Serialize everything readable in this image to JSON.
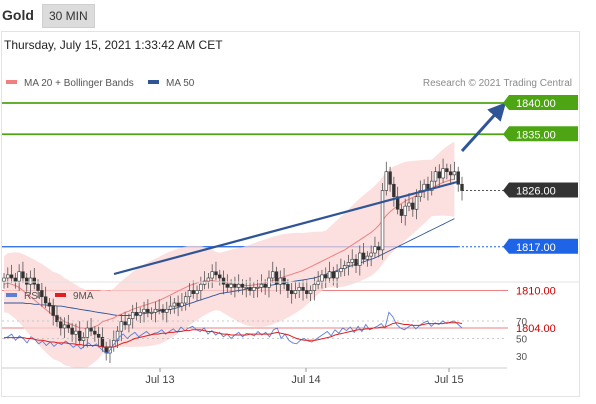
{
  "header": {
    "symbol": "Gold",
    "timeframe": "30 MIN"
  },
  "timestamp": "Thursday, July 15, 2021 1:33:42 AM CET",
  "legend": {
    "ma20": {
      "label": "MA 20 + Bollinger Bands",
      "color": "#f08080"
    },
    "ma50": {
      "label": "MA 50",
      "color": "#2f5597"
    },
    "credit": "Research © 2021 Trading Central"
  },
  "rsi_legend": {
    "rsi": {
      "label": "RSI",
      "color": "#5b7fd4"
    },
    "ma9": {
      "label": "9MA",
      "color": "#e02020"
    }
  },
  "chart_data": [
    {
      "type": "candlestick",
      "x_tick_labels": [
        "Jul 13",
        "Jul 14",
        "Jul 15"
      ],
      "ylim": [
        1797,
        1845
      ],
      "levels": [
        {
          "value": 1840,
          "label": "1840.00",
          "kind": "resistance",
          "color": "#4ea514"
        },
        {
          "value": 1835,
          "label": "1835.00",
          "kind": "resistance",
          "color": "#4ea514"
        },
        {
          "value": 1826,
          "label": "1826.00",
          "kind": "last-price",
          "color": "#333333"
        },
        {
          "value": 1817,
          "label": "1817.00",
          "kind": "pivot",
          "color": "#1e64e6"
        },
        {
          "value": 1810,
          "label": "1810.00",
          "kind": "support",
          "color": "#e84d4d"
        },
        {
          "value": 1804,
          "label": "1804.00",
          "kind": "support",
          "color": "#e84d4d"
        }
      ],
      "close_series": [
        1812,
        1812.5,
        1812,
        1811.5,
        1813,
        1812,
        1811,
        1812,
        1811,
        1810,
        1809,
        1808,
        1807.5,
        1806,
        1805,
        1804,
        1804.5,
        1804,
        1803,
        1803.5,
        1802,
        1802.5,
        1804,
        1803.5,
        1803,
        1802.5,
        1801,
        1800,
        1801,
        1802,
        1803.5,
        1805,
        1804.5,
        1805.5,
        1806.5,
        1806,
        1806.5,
        1807,
        1806.5,
        1806.5,
        1807,
        1807,
        1806.5,
        1807,
        1807.5,
        1808,
        1807.5,
        1808,
        1809,
        1810,
        1809.5,
        1810,
        1811,
        1811.5,
        1812,
        1813,
        1812.5,
        1812,
        1811,
        1810.5,
        1811,
        1810.5,
        1811,
        1810.5,
        1810.5,
        1810,
        1810.5,
        1810.5,
        1811,
        1810.5,
        1812,
        1813,
        1811,
        1812,
        1811,
        1810,
        1809.5,
        1810,
        1810.5,
        1810,
        1809.5,
        1810,
        1811,
        1811.5,
        1812.5,
        1812,
        1813,
        1812,
        1813,
        1813.5,
        1814,
        1814.5,
        1815,
        1814,
        1816,
        1815,
        1815.5,
        1816,
        1817,
        1816.5,
        1826,
        1829,
        1827,
        1825,
        1823,
        1822,
        1823.5,
        1824,
        1823,
        1825,
        1826,
        1827,
        1826,
        1827.5,
        1829,
        1828,
        1829.5,
        1829,
        1828.5,
        1829,
        1827,
        1826
      ],
      "close_series_note": "closing prices read off the price axis",
      "ma20_series": [
        1811,
        1811.2,
        1811,
        1810.8,
        1810.5,
        1810,
        1809.5,
        1809,
        1808.5,
        1808,
        1807.5,
        1807,
        1806.5,
        1806,
        1805.8,
        1805.5,
        1805,
        1804.8,
        1804.5,
        1804.3,
        1804,
        1804,
        1803.8,
        1804,
        1804.2,
        1804.5,
        1805,
        1805.2,
        1805.4,
        1805.6,
        1806,
        1806.2,
        1806.5,
        1806.7,
        1807,
        1807.2,
        1807.4,
        1807.6,
        1807.8,
        1808,
        1808.2,
        1808.4,
        1808.7,
        1809,
        1809.3,
        1809.6,
        1809.9,
        1810.2,
        1810.5,
        1810.8,
        1811,
        1811.2,
        1811.4,
        1811.5,
        1811.6,
        1811.6,
        1811.5,
        1811.4,
        1811.3,
        1811.2,
        1811.1,
        1811,
        1810.9,
        1810.8,
        1810.8,
        1810.8,
        1810.9,
        1811,
        1811.1,
        1811.2,
        1811.4,
        1811.6,
        1811.8,
        1812,
        1812.2,
        1812.4,
        1812.6,
        1812.8,
        1813,
        1813.2,
        1813.5,
        1813.8,
        1814.1,
        1814.4,
        1814.7,
        1815,
        1815.3,
        1815.6,
        1815.9,
        1816.2,
        1816.5,
        1816.9,
        1817.3,
        1817.7,
        1818.1,
        1818.5,
        1818.9,
        1819.3,
        1819.8,
        1820.4,
        1821.2,
        1822,
        1822.6,
        1823.1,
        1823.5,
        1823.9,
        1824.3,
        1824.6,
        1824.9,
        1825.2,
        1825.5,
        1825.8,
        1826.1,
        1826.4,
        1826.7,
        1827,
        1827.3,
        1827.5,
        1827.7,
        1827.8
      ],
      "ma50_series": [
        1808,
        1808,
        1808,
        1808,
        1808,
        1808,
        1807.9,
        1807.9,
        1807.8,
        1807.8,
        1807.7,
        1807.7,
        1807.6,
        1807.6,
        1807.5,
        1807.5,
        1807.4,
        1807.3,
        1807.2,
        1807.1,
        1807,
        1806.9,
        1806.8,
        1806.7,
        1806.6,
        1806.5,
        1806.4,
        1806.3,
        1806.2,
        1806.1,
        1806,
        1806,
        1806,
        1806,
        1806.1,
        1806.1,
        1806.2,
        1806.3,
        1806.4,
        1806.5,
        1806.6,
        1806.7,
        1806.8,
        1806.9,
        1807,
        1807.1,
        1807.3,
        1807.5,
        1807.7,
        1807.9,
        1808.1,
        1808.3,
        1808.5,
        1808.7,
        1808.9,
        1809.1,
        1809.3,
        1809.5,
        1809.6,
        1809.7,
        1809.8,
        1809.9,
        1810,
        1810.1,
        1810.2,
        1810.3,
        1810.4,
        1810.5,
        1810.6,
        1810.7,
        1810.8,
        1810.9,
        1811,
        1811.1,
        1811.2,
        1811.3,
        1811.4,
        1811.5,
        1811.6,
        1811.7,
        1811.8,
        1811.9,
        1812,
        1812.2,
        1812.4,
        1812.6,
        1812.8,
        1813,
        1813.2,
        1813.4,
        1813.6,
        1813.8,
        1814,
        1814.2,
        1814.4,
        1814.6,
        1814.8,
        1815,
        1815.2,
        1815.5,
        1815.8,
        1816.1,
        1816.4,
        1816.7,
        1817,
        1817.3,
        1817.6,
        1817.9,
        1818.2,
        1818.5,
        1818.8,
        1819.1,
        1819.4,
        1819.7,
        1820,
        1820.3,
        1820.6,
        1820.9,
        1821.2,
        1821.5
      ]
    },
    {
      "type": "line",
      "ylim": [
        20,
        80
      ],
      "y_tick_labels": [
        "70",
        "50",
        "30"
      ],
      "rsi_series": [
        50,
        52,
        55,
        48,
        53,
        50,
        45,
        52,
        49,
        44,
        47,
        42,
        46,
        41,
        45,
        43,
        47,
        44,
        40,
        43,
        38,
        42,
        45,
        41,
        44,
        39,
        35,
        33,
        40,
        46,
        52,
        55,
        50,
        54,
        57,
        52,
        55,
        58,
        54,
        56,
        57,
        60,
        55,
        58,
        61,
        57,
        63,
        59,
        62,
        64,
        60,
        58,
        62,
        55,
        59,
        54,
        57,
        52,
        55,
        50,
        54,
        57,
        52,
        56,
        55,
        53,
        58,
        54,
        57,
        52,
        60,
        62,
        50,
        55,
        48,
        45,
        44,
        48,
        50,
        47,
        46,
        49,
        52,
        55,
        58,
        53,
        60,
        56,
        62,
        59,
        63,
        57,
        64,
        58,
        66,
        60,
        62,
        64,
        67,
        62,
        80,
        75,
        66,
        62,
        60,
        63,
        66,
        61,
        65,
        68,
        70,
        64,
        68,
        66,
        70,
        67,
        69,
        70,
        66,
        62
      ],
      "ma9_series": [
        51,
        51,
        51,
        51,
        51,
        51,
        50,
        50,
        49,
        48,
        48,
        47,
        46,
        46,
        45,
        45,
        45,
        44,
        44,
        43,
        43,
        42,
        42,
        42,
        42,
        41,
        40,
        40,
        40,
        41,
        43,
        45,
        46,
        48,
        50,
        51,
        52,
        53,
        54,
        55,
        55,
        56,
        56,
        57,
        57,
        58,
        58,
        59,
        59,
        60,
        60,
        60,
        59,
        58,
        58,
        57,
        56,
        55,
        55,
        54,
        54,
        54,
        54,
        54,
        55,
        55,
        55,
        55,
        55,
        55,
        56,
        57,
        56,
        55,
        54,
        52,
        50,
        49,
        48,
        48,
        48,
        48,
        49,
        50,
        51,
        52,
        54,
        55,
        56,
        57,
        58,
        59,
        60,
        60,
        61,
        61,
        62,
        62,
        63,
        63,
        65,
        67,
        68,
        67,
        66,
        66,
        65,
        65,
        65,
        66,
        67,
        67,
        67,
        67,
        67,
        68,
        68,
        68,
        68,
        67
      ]
    }
  ]
}
